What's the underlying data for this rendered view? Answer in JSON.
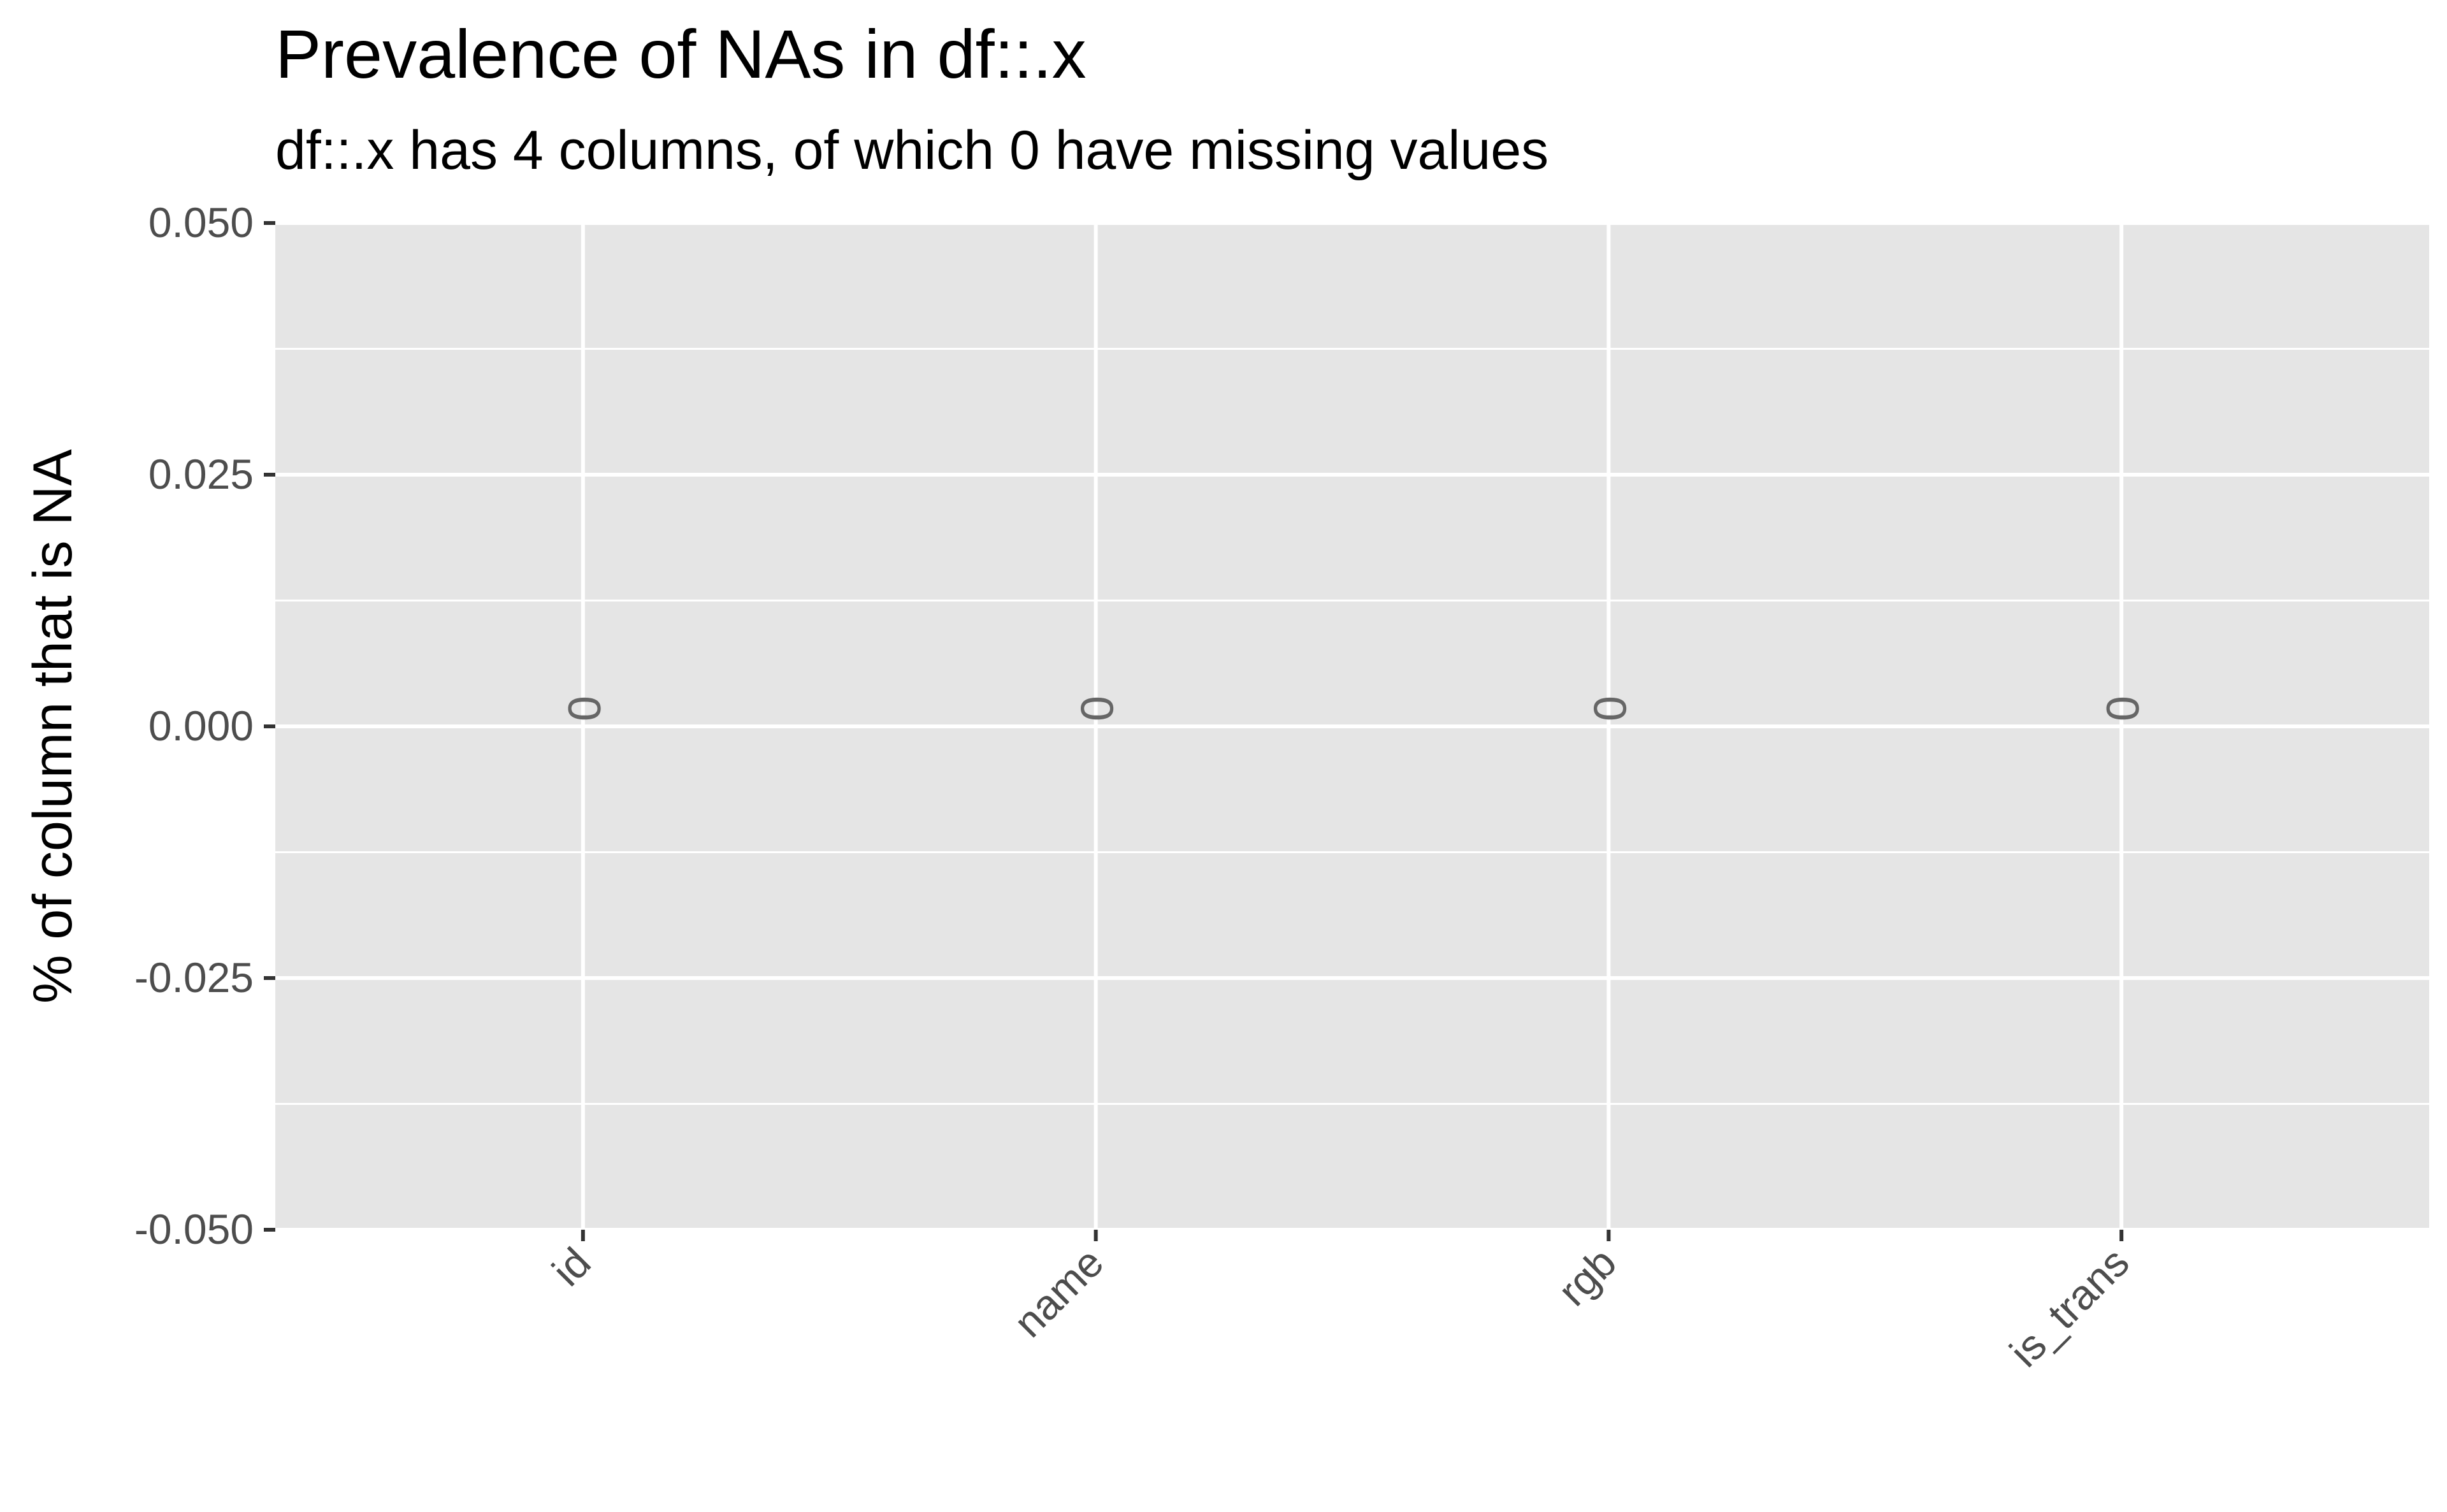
{
  "chart_data": {
    "type": "bar",
    "title": "Prevalence of NAs in df::.x",
    "subtitle": "df::.x has 4 columns, of which 0 have missing values",
    "xlabel": "",
    "ylabel": "% of column that is NA",
    "categories": [
      "id",
      "name",
      "rgb",
      "is_trans"
    ],
    "values": [
      0,
      0,
      0,
      0
    ],
    "data_labels": [
      "0",
      "0",
      "0",
      "0"
    ],
    "ylim": [
      -0.05,
      0.05
    ],
    "y_ticks": [
      -0.05,
      -0.025,
      0,
      0.025,
      0.05
    ],
    "y_tick_labels": [
      "-0.050",
      "-0.025",
      "0.000",
      "0.025",
      "0.050"
    ],
    "grid": true,
    "legend": "none",
    "colors": {
      "panel_background": "#e5e5e5",
      "grid_line": "#ffffff",
      "tick_text": "#4d4d4d",
      "title_text": "#000000",
      "data_label_text": "#666666"
    }
  }
}
